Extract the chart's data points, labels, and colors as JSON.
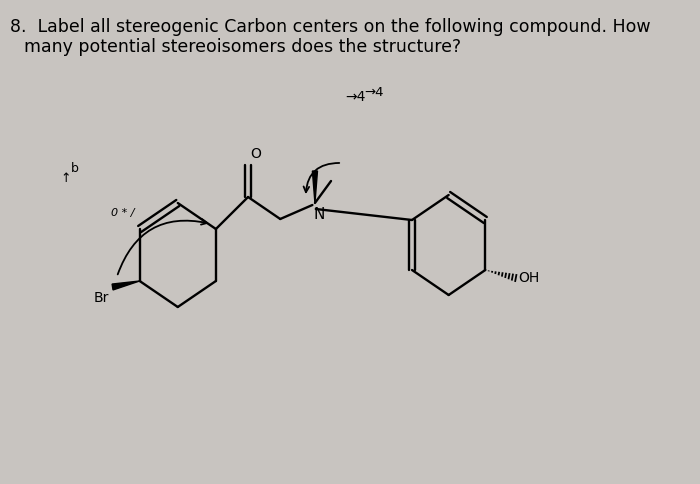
{
  "title_line1": "8.  Label all stereogenic Carbon centers on the following compound. How",
  "title_line2": "many potential stereoisomers does the structure?",
  "bg_color": "#c8c4c0",
  "text_color": "#000000",
  "title_fontsize": 12.5,
  "fig_width": 7.0,
  "fig_height": 4.84,
  "dpi": 100,
  "label_Br": "Br",
  "label_N": "N",
  "label_OH": "OH",
  "label_O": "O"
}
